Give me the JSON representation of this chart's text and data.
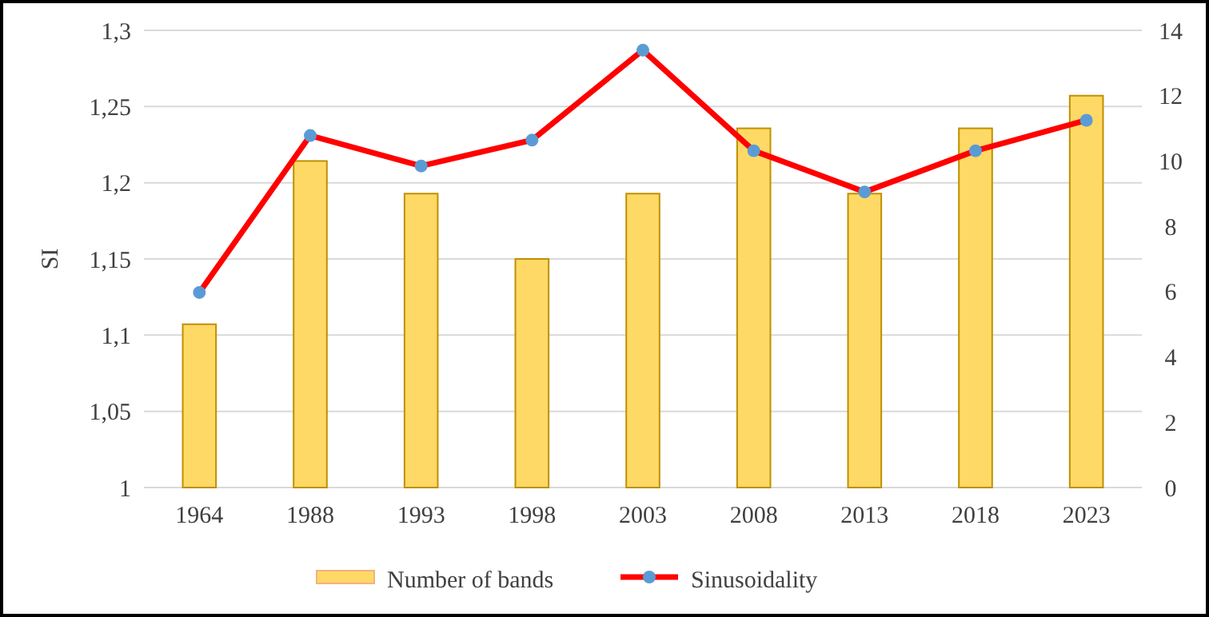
{
  "chart_data": {
    "type": "bar",
    "ylabel": "SI",
    "categories": [
      "1964",
      "1988",
      "1993",
      "1998",
      "2003",
      "2008",
      "2013",
      "2018",
      "2023"
    ],
    "series": [
      {
        "name": "Number of bands",
        "axis": "y2",
        "color": "#ffd966",
        "values": [
          5,
          10,
          9,
          7,
          9,
          11,
          9,
          11,
          12
        ]
      },
      {
        "name": "Sinusoidality",
        "type": "line",
        "axis": "y",
        "color": "#ff0000",
        "marker": "circle",
        "values": [
          1.128,
          1.231,
          1.211,
          1.228,
          1.287,
          1.221,
          1.194,
          1.221,
          1.241
        ]
      }
    ],
    "ylim": [
      1,
      1.3
    ],
    "yticks": [
      {
        "value": 1,
        "label": "1"
      },
      {
        "value": 1.05,
        "label": "1,05"
      },
      {
        "value": 1.1,
        "label": "1,1"
      },
      {
        "value": 1.15,
        "label": "1,15"
      },
      {
        "value": 1.2,
        "label": "1,2"
      },
      {
        "value": 1.25,
        "label": "1,25"
      },
      {
        "value": 1.3,
        "label": "1,3"
      }
    ],
    "y2lim": [
      0,
      14
    ],
    "y2ticks": [
      0,
      2,
      4,
      6,
      8,
      10,
      12,
      14
    ],
    "grid": "y",
    "legend": "bottom"
  }
}
